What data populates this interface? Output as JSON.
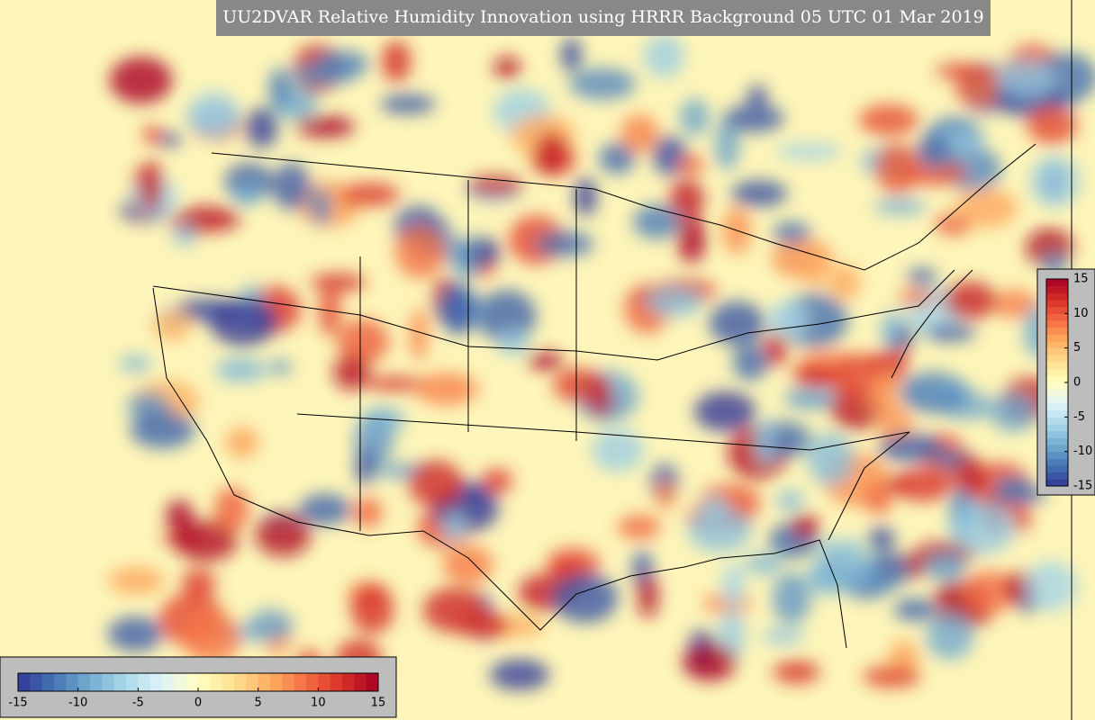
{
  "title": "UU2DVAR Relative Humidity Innovation using HRRR Background 05 UTC 01 Mar 2019",
  "colormap": [
    "#313695",
    "#4575b4",
    "#74add1",
    "#abd9e9",
    "#e0f3f8",
    "#ffffbf",
    "#fee090",
    "#fdae61",
    "#f46d43",
    "#d73027",
    "#a50026"
  ],
  "colorbars": [
    {
      "orientation": "vertical",
      "range": [
        -15,
        15
      ],
      "ticks": [
        15,
        10,
        5,
        0,
        -5,
        -10,
        -15
      ]
    },
    {
      "orientation": "horizontal",
      "range": [
        -15,
        15
      ],
      "ticks": [
        -15,
        -10,
        -5,
        0,
        5,
        10,
        15
      ]
    }
  ]
}
